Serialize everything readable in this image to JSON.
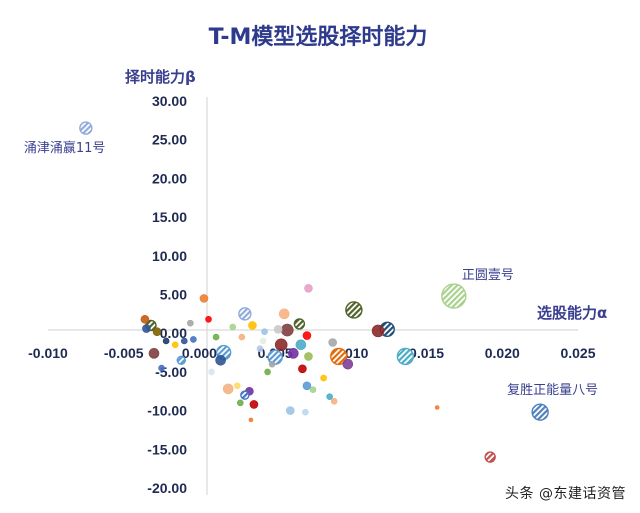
{
  "chart_data": {
    "type": "scatter",
    "title": "T-M模型选股择时能力",
    "xlabel": "选股能力α",
    "ylabel": "择时能力β",
    "xlim": [
      -0.01,
      0.025
    ],
    "ylim": [
      -20,
      30
    ],
    "x_ticks": [
      "-0.010",
      "-0.005",
      "0.000",
      "0.005",
      "0.010",
      "0.015",
      "0.020",
      "0.025"
    ],
    "y_ticks": [
      "30.00",
      "25.00",
      "20.00",
      "15.00",
      "10.00",
      "5.00",
      "0.00",
      "-5.00",
      "-10.00",
      "-15.00",
      "-20.00"
    ],
    "grid": false,
    "annotations": [
      {
        "text": "涌津涌赢11号",
        "x": -0.0075,
        "y": 26.5
      },
      {
        "text": "正圆壹号",
        "x": 0.0168,
        "y": 4.8
      },
      {
        "text": "复胜正能量八号",
        "x": 0.0225,
        "y": -10.2
      }
    ],
    "points": [
      {
        "x": -0.0075,
        "y": 26.5,
        "r": 6,
        "color": "#8faadc",
        "hatch": true
      },
      {
        "x": 0.0168,
        "y": 4.8,
        "r": 12,
        "color": "#a9d18e",
        "hatch": true
      },
      {
        "x": 0.0225,
        "y": -10.2,
        "r": 8,
        "color": "#4f81bd",
        "hatch": true
      },
      {
        "x": 0.0192,
        "y": -16.0,
        "r": 5,
        "color": "#c0504d",
        "hatch": true
      },
      {
        "x": 0.0102,
        "y": 3.0,
        "r": 8,
        "color": "#4f6228",
        "hatch": true
      },
      {
        "x": 0.0124,
        "y": 0.5,
        "r": 7,
        "color": "#1f4e79",
        "hatch": true
      },
      {
        "x": 0.0118,
        "y": 0.3,
        "r": 6,
        "color": "#8b2a2a",
        "hatch": false
      },
      {
        "x": 0.0136,
        "y": -3.0,
        "r": 8,
        "color": "#4bacc6",
        "hatch": true
      },
      {
        "x": 0.0067,
        "y": -1.5,
        "r": 5,
        "color": "#4bacc6",
        "hatch": false
      },
      {
        "x": 0.0092,
        "y": -3.0,
        "r": 8,
        "color": "#e36c09",
        "hatch": true
      },
      {
        "x": 0.0098,
        "y": -4.0,
        "r": 5,
        "color": "#7f3f98",
        "hatch": false
      },
      {
        "x": 0.0072,
        "y": -3.0,
        "r": 4,
        "color": "#9bbb59",
        "hatch": false
      },
      {
        "x": 0.0088,
        "y": -1.2,
        "r": 4,
        "color": "#a6a6a6",
        "hatch": false
      },
      {
        "x": 0.0072,
        "y": 5.8,
        "r": 4,
        "color": "#e6a0c4",
        "hatch": false
      },
      {
        "x": 0.0056,
        "y": 2.5,
        "r": 5,
        "color": "#f7b183",
        "hatch": false
      },
      {
        "x": 0.0066,
        "y": 1.2,
        "r": 5,
        "color": "#4f6228",
        "hatch": true
      },
      {
        "x": 0.0058,
        "y": 0.4,
        "r": 6,
        "color": "#7f3f3f",
        "hatch": false
      },
      {
        "x": 0.0071,
        "y": -0.3,
        "r": 4,
        "color": "#ff0000",
        "hatch": false
      },
      {
        "x": 0.0054,
        "y": -1.5,
        "r": 6,
        "color": "#8b2a2a",
        "hatch": false
      },
      {
        "x": 0.0062,
        "y": -2.6,
        "r": 5,
        "color": "#7030a0",
        "hatch": false
      },
      {
        "x": 0.005,
        "y": -3.1,
        "r": 7,
        "color": "#5b9bd5",
        "hatch": true
      },
      {
        "x": 0.0068,
        "y": -4.6,
        "r": 4,
        "color": "#c00000",
        "hatch": false
      },
      {
        "x": 0.0045,
        "y": -5.0,
        "r": 3,
        "color": "#70ad47",
        "hatch": false
      },
      {
        "x": 0.004,
        "y": -2.0,
        "r": 3,
        "color": "#b4c7e7",
        "hatch": false
      },
      {
        "x": 0.0035,
        "y": 1.0,
        "r": 4,
        "color": "#ffc000",
        "hatch": false
      },
      {
        "x": 0.003,
        "y": 2.5,
        "r": 6,
        "color": "#8faadc",
        "hatch": true
      },
      {
        "x": 0.0022,
        "y": 0.8,
        "r": 3,
        "color": "#a9d18e",
        "hatch": false
      },
      {
        "x": 0.0028,
        "y": -0.5,
        "r": 3,
        "color": "#f4b183",
        "hatch": false
      },
      {
        "x": 0.0043,
        "y": 0.2,
        "r": 3,
        "color": "#9dc3e6",
        "hatch": false
      },
      {
        "x": 0.0016,
        "y": -2.5,
        "r": 7,
        "color": "#5b9bd5",
        "hatch": true
      },
      {
        "x": 0.0019,
        "y": -7.2,
        "r": 5,
        "color": "#f4b183",
        "hatch": false
      },
      {
        "x": 0.0033,
        "y": -7.5,
        "r": 4,
        "color": "#7030a0",
        "hatch": false
      },
      {
        "x": 0.003,
        "y": -8.0,
        "r": 4,
        "color": "#4472c4",
        "hatch": true
      },
      {
        "x": 0.0036,
        "y": -9.2,
        "r": 4,
        "color": "#c00000",
        "hatch": false
      },
      {
        "x": 0.0027,
        "y": -9.0,
        "r": 3,
        "color": "#70ad47",
        "hatch": false
      },
      {
        "x": 0.0034,
        "y": -11.2,
        "r": 2,
        "color": "#ed7d31",
        "hatch": false
      },
      {
        "x": 0.006,
        "y": -10.0,
        "r": 4,
        "color": "#9dc3e6",
        "hatch": false
      },
      {
        "x": 0.0025,
        "y": -6.8,
        "r": 3,
        "color": "#ffd966",
        "hatch": false
      },
      {
        "x": 0.0071,
        "y": -6.8,
        "r": 4,
        "color": "#5b9bd5",
        "hatch": false
      },
      {
        "x": 0.0075,
        "y": -7.3,
        "r": 3,
        "color": "#a9d18e",
        "hatch": false
      },
      {
        "x": 0.0082,
        "y": -5.8,
        "r": 3,
        "color": "#ffc000",
        "hatch": false
      },
      {
        "x": 0.0086,
        "y": -8.2,
        "r": 3,
        "color": "#4bacc6",
        "hatch": false
      },
      {
        "x": 0.0089,
        "y": -8.8,
        "r": 3,
        "color": "#f4b183",
        "hatch": false
      },
      {
        "x": 0.007,
        "y": -10.2,
        "r": 3,
        "color": "#bdd7ee",
        "hatch": false
      },
      {
        "x": 0.0157,
        "y": -9.6,
        "r": 2,
        "color": "#ed7d31",
        "hatch": false
      },
      {
        "x": 0.0014,
        "y": -3.5,
        "r": 5,
        "color": "#2f5597",
        "hatch": false
      },
      {
        "x": 0.0011,
        "y": -0.5,
        "r": 3,
        "color": "#70ad47",
        "hatch": false
      },
      {
        "x": 0.0006,
        "y": 1.8,
        "r": 3,
        "color": "#ff0000",
        "hatch": false
      },
      {
        "x": 0.0003,
        "y": 4.5,
        "r": 4,
        "color": "#ed7d31",
        "hatch": false
      },
      {
        "x": -0.0006,
        "y": 1.3,
        "r": 3,
        "color": "#a5a5a5",
        "hatch": false
      },
      {
        "x": -0.001,
        "y": -1.0,
        "r": 3,
        "color": "#2f5597",
        "hatch": false
      },
      {
        "x": -0.0004,
        "y": -0.8,
        "r": 3,
        "color": "#4472c4",
        "hatch": false
      },
      {
        "x": -0.003,
        "y": -2.6,
        "r": 5,
        "color": "#7f3f3f",
        "hatch": false
      },
      {
        "x": -0.0032,
        "y": 1.0,
        "r": 5,
        "color": "#4f6228",
        "hatch": true
      },
      {
        "x": -0.0036,
        "y": 1.8,
        "r": 4,
        "color": "#c55a11",
        "hatch": false
      },
      {
        "x": -0.0035,
        "y": 0.6,
        "r": 4,
        "color": "#2f5597",
        "hatch": false
      },
      {
        "x": -0.0028,
        "y": 0.2,
        "r": 4,
        "color": "#7f6000",
        "hatch": false
      },
      {
        "x": -0.0022,
        "y": -1.0,
        "r": 3,
        "color": "#1f3864",
        "hatch": false
      },
      {
        "x": -0.0012,
        "y": -3.5,
        "r": 4,
        "color": "#5b9bd5",
        "hatch": true
      },
      {
        "x": -0.0025,
        "y": -4.5,
        "r": 3,
        "color": "#4472c4",
        "hatch": false
      },
      {
        "x": -0.0016,
        "y": -1.5,
        "r": 3,
        "color": "#ffc000",
        "hatch": false
      },
      {
        "x": 0.0048,
        "y": -4.0,
        "r": 3,
        "color": "#a5a5a5",
        "hatch": false
      },
      {
        "x": 0.0052,
        "y": 0.5,
        "r": 4,
        "color": "#c9c9c9",
        "hatch": false
      },
      {
        "x": 0.0042,
        "y": -1.0,
        "r": 3,
        "color": "#e2efda",
        "hatch": false
      },
      {
        "x": 0.0008,
        "y": -5.0,
        "r": 3,
        "color": "#dae3f3",
        "hatch": false
      }
    ]
  },
  "watermark": "头条 @东建话资管"
}
